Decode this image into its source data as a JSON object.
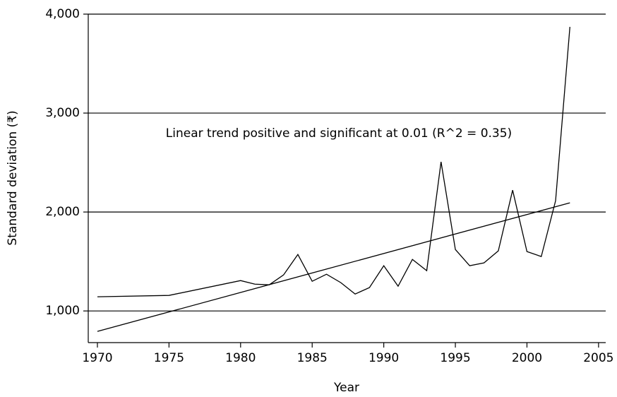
{
  "chart_data": {
    "type": "line",
    "x_label": "Year",
    "y_label": "Standard deviation (₹)",
    "annotation": "Linear trend positive and significant at 0.01 (R^2 = 0.35)",
    "series": [
      {
        "color": "#000000",
        "x": [
          1970,
          1975,
          1980,
          1981,
          1982,
          1983,
          1984,
          1985,
          1986,
          1987,
          1988,
          1989,
          1990,
          1991,
          1992,
          1993,
          1994,
          1995,
          1996,
          1997,
          1998,
          1999,
          2000,
          2001,
          2002,
          2003
        ],
        "values": [
          1143,
          1157,
          1307,
          1271,
          1264,
          1364,
          1571,
          1300,
          1371,
          1286,
          1171,
          1236,
          1457,
          1250,
          1521,
          1407,
          2507,
          1621,
          1457,
          1486,
          1607,
          2221,
          1600,
          1550,
          2114,
          3871
        ]
      },
      {
        "color": "#000000",
        "x": [
          1970,
          2003
        ],
        "values": [
          793,
          2093
        ]
      }
    ],
    "xlim": [
      1969.36,
      2005.5
    ],
    "xticks": [
      1970,
      1975,
      1980,
      1985,
      1990,
      1995,
      2000,
      2005
    ],
    "ylim": [
      680,
      4000
    ],
    "yticks": [
      {
        "value": 1000,
        "label": "1,000"
      },
      {
        "value": 2000,
        "label": "2,000"
      },
      {
        "value": 3000,
        "label": "3,000"
      },
      {
        "value": 4000,
        "label": "4,000"
      }
    ],
    "grid": true
  }
}
